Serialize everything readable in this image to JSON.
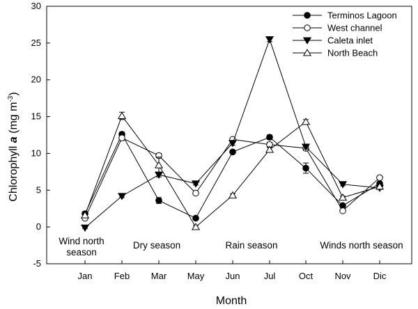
{
  "chart_data": {
    "type": "line",
    "categories": [
      "Jan",
      "Feb",
      "Mar",
      "May",
      "Jun",
      "Jul",
      "Oct",
      "Nov",
      "Dic"
    ],
    "xlabel": "Month",
    "ylabel": "Chlorophyll a (mg m-3)",
    "ylabel_parts": {
      "prefix": "Chlorophyll ",
      "italic": "a",
      "unit": " (mg m",
      "exponent": "-3",
      "close": ")"
    },
    "ylim": [
      -5,
      30
    ],
    "yticks": [
      -5,
      0,
      5,
      10,
      15,
      20,
      25,
      30
    ],
    "legend_position": "top-right",
    "grid": false,
    "series": [
      {
        "name": "Terminos Lagoon",
        "marker": "circle-filled",
        "values": [
          1.8,
          12.6,
          3.6,
          1.2,
          10.2,
          12.2,
          8.0,
          2.9,
          5.9
        ],
        "errors": [
          0.3,
          0.3,
          0.4,
          0.2,
          0.2,
          0.3,
          0.7,
          0.2,
          0.2
        ]
      },
      {
        "name": "West channel",
        "marker": "circle-open",
        "values": [
          1.2,
          12.1,
          9.7,
          4.6,
          11.9,
          11.2,
          10.7,
          2.2,
          6.7
        ],
        "errors": [
          0.2,
          0.3,
          0.3,
          0.2,
          0.2,
          0.3,
          0.3,
          0.2,
          0.2
        ]
      },
      {
        "name": "Caleta inlet",
        "marker": "triangle-down-filled",
        "values": [
          -0.1,
          4.2,
          7.1,
          5.9,
          11.4,
          25.5,
          10.9,
          5.8,
          5.3
        ],
        "errors": [
          0.1,
          0.2,
          0.3,
          0.2,
          0.3,
          0.3,
          0.3,
          0.2,
          0.2
        ]
      },
      {
        "name": "North Beach",
        "marker": "triangle-up-open",
        "values": [
          1.6,
          15.1,
          8.4,
          0.0,
          4.3,
          10.5,
          14.3,
          4.0,
          5.5
        ],
        "errors": [
          0.3,
          0.5,
          1.1,
          0.2,
          0.2,
          0.3,
          0.3,
          0.2,
          0.2
        ]
      }
    ],
    "annotations": [
      {
        "lines": [
          "Wind north",
          "season"
        ]
      },
      {
        "lines": [
          "Dry season"
        ]
      },
      {
        "lines": [
          "Rain season"
        ]
      },
      {
        "lines": [
          "Winds north season"
        ]
      }
    ]
  }
}
